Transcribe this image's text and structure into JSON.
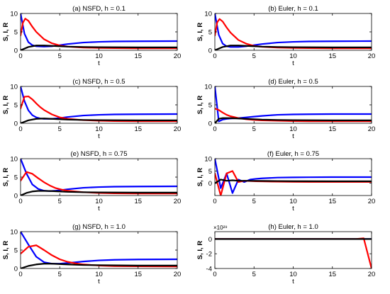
{
  "colors": {
    "S": "#0000ff",
    "I": "#ff0000",
    "R": "#000000",
    "axis": "#000000",
    "background": "#ffffff"
  },
  "chart_data": [
    {
      "type": "line",
      "title": "(a) NSFD, h = 0.1",
      "xlabel": "t",
      "ylabel": "S, I, R",
      "xlim": [
        0,
        20
      ],
      "ylim": [
        0,
        10
      ],
      "xticks": [
        "0",
        "5",
        "10",
        "15",
        "20"
      ],
      "yticks": [
        "0",
        "5",
        "10"
      ],
      "series": [
        {
          "color": "#0000ff",
          "x": [
            0,
            0.5,
            1,
            1.5,
            2,
            3,
            4,
            5,
            6,
            8,
            10,
            12,
            15,
            20
          ],
          "y": [
            10,
            4.5,
            2.2,
            1.4,
            1.1,
            1.0,
            1.1,
            1.4,
            1.7,
            2.1,
            2.3,
            2.4,
            2.45,
            2.5
          ]
        },
        {
          "color": "#ff0000",
          "x": [
            0,
            0.3,
            0.6,
            1,
            1.5,
            2,
            3,
            4,
            5,
            6,
            8,
            10,
            12,
            15,
            20
          ],
          "y": [
            4,
            7.5,
            8.6,
            8.0,
            6.4,
            5.0,
            3.0,
            1.9,
            1.3,
            1.0,
            0.75,
            0.65,
            0.6,
            0.55,
            0.55
          ]
        },
        {
          "color": "#000000",
          "x": [
            0,
            1,
            2,
            3,
            4,
            6,
            8,
            10,
            15,
            20
          ],
          "y": [
            0,
            0.9,
            1.3,
            1.3,
            1.2,
            1.0,
            0.9,
            0.85,
            0.8,
            0.8
          ]
        }
      ]
    },
    {
      "type": "line",
      "title": "(b) Euler, h = 0.1",
      "xlabel": "t",
      "ylabel": "S, I, R",
      "xlim": [
        0,
        20
      ],
      "ylim": [
        0,
        10
      ],
      "xticks": [
        "0",
        "5",
        "10",
        "15",
        "20"
      ],
      "yticks": [
        "0",
        "5",
        "10"
      ],
      "series": [
        {
          "color": "#0000ff",
          "x": [
            0,
            0.5,
            1,
            1.5,
            2,
            3,
            4,
            5,
            6,
            8,
            10,
            12,
            15,
            20
          ],
          "y": [
            10,
            4.2,
            1.8,
            1.1,
            0.9,
            0.9,
            1.1,
            1.4,
            1.7,
            2.1,
            2.3,
            2.4,
            2.45,
            2.5
          ]
        },
        {
          "color": "#ff0000",
          "x": [
            0,
            0.3,
            0.6,
            1,
            1.5,
            2,
            3,
            4,
            5,
            6,
            8,
            10,
            12,
            15,
            20
          ],
          "y": [
            4,
            7.6,
            8.5,
            7.8,
            6.2,
            4.8,
            2.8,
            1.8,
            1.2,
            0.95,
            0.75,
            0.65,
            0.6,
            0.55,
            0.55
          ]
        },
        {
          "color": "#000000",
          "x": [
            0,
            1,
            2,
            3,
            4,
            6,
            8,
            10,
            15,
            20
          ],
          "y": [
            0,
            0.9,
            1.3,
            1.3,
            1.2,
            1.0,
            0.9,
            0.85,
            0.8,
            0.8
          ]
        }
      ]
    },
    {
      "type": "line",
      "title": "(c) NSFD, h = 0.5",
      "xlabel": "t",
      "ylabel": "S, I, R",
      "xlim": [
        0,
        20
      ],
      "ylim": [
        0,
        10
      ],
      "xticks": [
        "0",
        "5",
        "10",
        "15",
        "20"
      ],
      "yticks": [
        "0",
        "5",
        "10"
      ],
      "series": [
        {
          "color": "#0000ff",
          "x": [
            0,
            0.5,
            1,
            1.5,
            2,
            2.5,
            3,
            4,
            5,
            6,
            8,
            10,
            12,
            15,
            20
          ],
          "y": [
            10,
            6.0,
            3.5,
            2.2,
            1.6,
            1.3,
            1.2,
            1.2,
            1.4,
            1.7,
            2.1,
            2.3,
            2.4,
            2.45,
            2.5
          ]
        },
        {
          "color": "#ff0000",
          "x": [
            0,
            0.5,
            1,
            1.5,
            2,
            2.5,
            3,
            4,
            5,
            6,
            8,
            10,
            12,
            15,
            20
          ],
          "y": [
            4,
            7.2,
            7.3,
            6.5,
            5.4,
            4.4,
            3.6,
            2.4,
            1.6,
            1.2,
            0.85,
            0.7,
            0.6,
            0.55,
            0.55
          ]
        },
        {
          "color": "#000000",
          "x": [
            0,
            1,
            2,
            3,
            4,
            6,
            8,
            10,
            15,
            20
          ],
          "y": [
            0,
            0.8,
            1.2,
            1.3,
            1.2,
            1.0,
            0.9,
            0.85,
            0.8,
            0.8
          ]
        }
      ]
    },
    {
      "type": "line",
      "title": "(d) Euler, h = 0.5",
      "xlabel": "t",
      "ylabel": "S, I, R",
      "xlim": [
        0,
        20
      ],
      "ylim": [
        0,
        10
      ],
      "xticks": [
        "0",
        "5",
        "10",
        "15",
        "20"
      ],
      "yticks": [
        "0",
        "5",
        "10"
      ],
      "series": [
        {
          "color": "#0000ff",
          "x": [
            0,
            0.5,
            1,
            1.5,
            2,
            3,
            4,
            5,
            6,
            8,
            10,
            12,
            15,
            20
          ],
          "y": [
            10,
            0.5,
            1.0,
            1.2,
            1.3,
            1.4,
            1.6,
            1.8,
            2.0,
            2.3,
            2.4,
            2.45,
            2.5,
            2.5
          ]
        },
        {
          "color": "#ff0000",
          "x": [
            0,
            0.5,
            1,
            1.5,
            2,
            3,
            4,
            5,
            6,
            8,
            10,
            12,
            15,
            20
          ],
          "y": [
            4,
            3.6,
            2.9,
            2.3,
            1.9,
            1.4,
            1.1,
            0.9,
            0.8,
            0.7,
            0.6,
            0.55,
            0.55,
            0.55
          ]
        },
        {
          "color": "#000000",
          "x": [
            0,
            0.5,
            1,
            2,
            3,
            4,
            6,
            8,
            10,
            15,
            20
          ],
          "y": [
            0,
            1.2,
            1.4,
            1.4,
            1.3,
            1.2,
            1.0,
            0.9,
            0.85,
            0.8,
            0.8
          ]
        }
      ]
    },
    {
      "type": "line",
      "title": "(e) NSFD, h = 0.75",
      "xlabel": "t",
      "ylabel": "S, I, R",
      "xlim": [
        0,
        20
      ],
      "ylim": [
        0,
        10
      ],
      "xticks": [
        "0",
        "5",
        "10",
        "15",
        "20"
      ],
      "yticks": [
        "0",
        "5",
        "10"
      ],
      "series": [
        {
          "color": "#0000ff",
          "x": [
            0,
            0.75,
            1.5,
            2.25,
            3,
            3.75,
            4.5,
            5.25,
            6,
            8,
            10,
            12,
            15,
            20
          ],
          "y": [
            10,
            6.0,
            3.0,
            1.8,
            1.3,
            1.2,
            1.3,
            1.5,
            1.7,
            2.1,
            2.3,
            2.4,
            2.45,
            2.5
          ]
        },
        {
          "color": "#ff0000",
          "x": [
            0,
            0.75,
            1.5,
            2.25,
            3,
            3.75,
            4.5,
            5.25,
            6,
            8,
            10,
            12,
            15,
            20
          ],
          "y": [
            4,
            6.4,
            5.9,
            4.7,
            3.6,
            2.7,
            2.0,
            1.6,
            1.3,
            0.9,
            0.7,
            0.6,
            0.55,
            0.55
          ]
        },
        {
          "color": "#000000",
          "x": [
            0,
            0.75,
            1.5,
            2.25,
            3,
            4,
            6,
            8,
            10,
            15,
            20
          ],
          "y": [
            0,
            0.7,
            1.1,
            1.25,
            1.25,
            1.2,
            1.0,
            0.9,
            0.85,
            0.8,
            0.8
          ]
        }
      ]
    },
    {
      "type": "line",
      "title": "(f) Euler, h = 0.75",
      "xlabel": "t",
      "ylabel": "S, I, R",
      "xlim": [
        0,
        20
      ],
      "ylim": [
        -5,
        10
      ],
      "xticks": [
        "0",
        "5",
        "10",
        "15",
        "20"
      ],
      "yticks": [
        "0",
        "5",
        "10"
      ],
      "series": [
        {
          "color": "#0000ff",
          "x": [
            0,
            0.75,
            1.5,
            2.25,
            3,
            3.75,
            4.5,
            5.25,
            6,
            8,
            10,
            12,
            15,
            20
          ],
          "y": [
            10,
            -2.0,
            4.0,
            -4.0,
            1.5,
            0.5,
            1.5,
            1.8,
            2.0,
            2.3,
            2.4,
            2.45,
            2.5,
            2.5
          ]
        },
        {
          "color": "#ff0000",
          "x": [
            0,
            0.75,
            1.5,
            2.25,
            3,
            3.75,
            4.5,
            5.25,
            6,
            8,
            10,
            12,
            15,
            20
          ],
          "y": [
            4,
            -5.0,
            4.0,
            5.0,
            0.5,
            1.0,
            0.9,
            0.8,
            0.75,
            0.65,
            0.6,
            0.55,
            0.55,
            0.55
          ]
        },
        {
          "color": "#000000",
          "x": [
            0,
            0.75,
            1.5,
            2.25,
            3,
            4,
            6,
            8,
            10,
            15,
            20
          ],
          "y": [
            0,
            1.5,
            1.0,
            1.2,
            1.0,
            1.0,
            0.95,
            0.9,
            0.85,
            0.8,
            0.8
          ]
        }
      ]
    },
    {
      "type": "line",
      "title": "(g) NSFD, h = 1.0",
      "xlabel": "t",
      "ylabel": "S, I, R",
      "xlim": [
        0,
        20
      ],
      "ylim": [
        0,
        10
      ],
      "xticks": [
        "0",
        "5",
        "10",
        "15",
        "20"
      ],
      "yticks": [
        "0",
        "5",
        "10"
      ],
      "series": [
        {
          "color": "#0000ff",
          "x": [
            0,
            1,
            2,
            3,
            4,
            5,
            6,
            7,
            8,
            10,
            12,
            15,
            20
          ],
          "y": [
            10,
            6.5,
            3.2,
            1.7,
            1.3,
            1.3,
            1.5,
            1.7,
            1.9,
            2.2,
            2.35,
            2.45,
            2.5
          ]
        },
        {
          "color": "#ff0000",
          "x": [
            0,
            1,
            2,
            3,
            4,
            5,
            6,
            7,
            8,
            10,
            12,
            15,
            20
          ],
          "y": [
            4,
            5.9,
            6.3,
            5.0,
            3.6,
            2.5,
            1.8,
            1.4,
            1.1,
            0.8,
            0.65,
            0.6,
            0.55
          ]
        },
        {
          "color": "#000000",
          "x": [
            0,
            1,
            2,
            3,
            4,
            6,
            8,
            10,
            15,
            20
          ],
          "y": [
            0,
            0.7,
            1.1,
            1.3,
            1.3,
            1.1,
            0.95,
            0.9,
            0.8,
            0.8
          ]
        }
      ]
    },
    {
      "type": "line",
      "title": "(h) Euler, h = 1.0",
      "xlabel": "t",
      "ylabel": "S, I, R",
      "exponent_label": "×10²⁹",
      "xlim": [
        0,
        20
      ],
      "ylim": [
        -4,
        1
      ],
      "xticks": [
        "0",
        "5",
        "10",
        "15",
        "20"
      ],
      "yticks": [
        "-4",
        "-2",
        "0"
      ],
      "series": [
        {
          "color": "#0000ff",
          "x": [
            0,
            20
          ],
          "y": [
            0,
            0
          ]
        },
        {
          "color": "#ff0000",
          "x": [
            0,
            18,
            19,
            20
          ],
          "y": [
            0,
            0,
            0.1,
            -4.0
          ]
        },
        {
          "color": "#000000",
          "x": [
            0,
            20
          ],
          "y": [
            0,
            0
          ]
        }
      ]
    }
  ]
}
